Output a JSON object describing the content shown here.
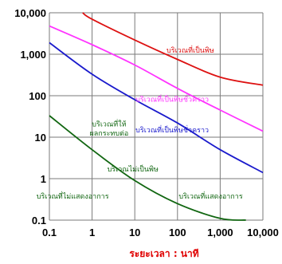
{
  "chart_data": {
    "type": "line",
    "xscale": "log",
    "yscale": "log",
    "xlim": [
      0.1,
      10000
    ],
    "ylim": [
      0.1,
      10000
    ],
    "xticks": [
      0.1,
      1,
      10,
      100,
      1000,
      10000
    ],
    "xtick_labels": [
      "0.1",
      "1",
      "10",
      "100",
      "1,000",
      "10,000"
    ],
    "yticks": [
      0.1,
      1,
      10,
      100,
      1000,
      10000
    ],
    "ytick_labels": [
      "0.1",
      "1",
      "10",
      "100",
      "1,000",
      "10,000"
    ],
    "grid": true,
    "legend": "none",
    "title": "",
    "xlabel": "ระยะเวลา : นาที",
    "xlabel_color": "#e00000",
    "ylabel": "",
    "series": [
      {
        "color": "#dd1111",
        "points": [
          [
            0.6,
            10000
          ],
          [
            1,
            7000
          ],
          [
            10,
            2200
          ],
          [
            100,
            750
          ],
          [
            1000,
            280
          ],
          [
            10000,
            180
          ]
        ]
      },
      {
        "color": "#ff33ff",
        "points": [
          [
            0.1,
            4800
          ],
          [
            1,
            1700
          ],
          [
            10,
            550
          ],
          [
            100,
            150
          ],
          [
            1000,
            45
          ],
          [
            10000,
            14
          ]
        ]
      },
      {
        "color": "#1a1acc",
        "points": [
          [
            0.1,
            1900
          ],
          [
            1,
            330
          ],
          [
            10,
            80
          ],
          [
            100,
            22
          ],
          [
            1000,
            5
          ],
          [
            10000,
            1.4
          ]
        ]
      },
      {
        "color": "#116611",
        "points": [
          [
            0.1,
            33
          ],
          [
            1,
            5
          ],
          [
            10,
            0.9
          ],
          [
            100,
            0.25
          ],
          [
            1000,
            0.11
          ],
          [
            4000,
            0.1
          ]
        ]
      }
    ],
    "annotations": [
      {
        "text": "บริเวณที่เป็นพิษ",
        "color": "#dd1111",
        "x": 200,
        "y": 1100
      },
      {
        "text": "บริเวณที่เป็นพิษชั่วคราว",
        "color": "#ff33ff",
        "x": 75,
        "y": 72
      },
      {
        "text": "บริเวณที่เป็นพิษชั่วคราว",
        "color": "#1a1acc",
        "x": 75,
        "y": 13
      },
      {
        "text": "บริเวณที่ให้",
        "color": "#116611",
        "x": 2.5,
        "y": 18
      },
      {
        "text": "ผลกระทบต่อ",
        "color": "#116611",
        "x": 2.5,
        "y": 11
      },
      {
        "text": "บริเวณไม่เป็นพิษ",
        "color": "#116611",
        "x": 9,
        "y": 1.5
      },
      {
        "text": "บริเวณที่ไม่แสดงอาการ",
        "color": "#116611",
        "x": 0.35,
        "y": 0.33
      },
      {
        "text": "บริเวณที่แสดงอาการ",
        "color": "#116611",
        "x": 600,
        "y": 0.33
      }
    ]
  }
}
